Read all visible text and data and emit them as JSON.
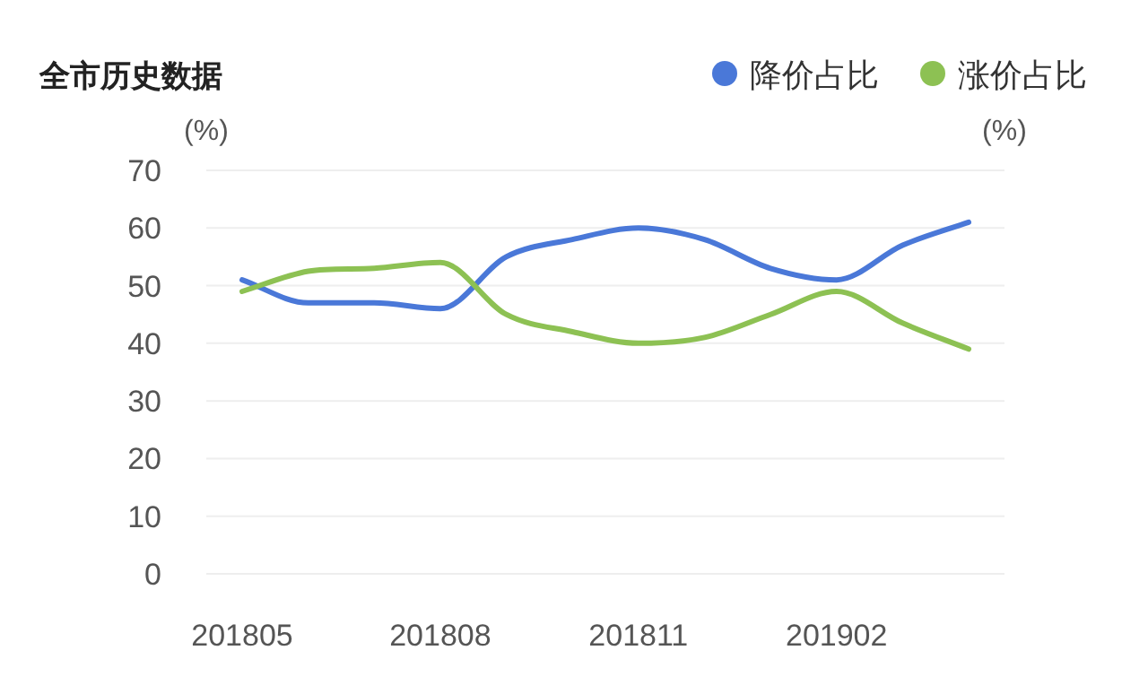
{
  "chart_data": {
    "type": "line",
    "title": "全市历史数据",
    "ylabel": "(%)",
    "annotations": [
      "(%)"
    ],
    "categories": [
      "201805",
      null,
      null,
      "201808",
      null,
      null,
      "201811",
      null,
      null,
      "201902",
      null,
      null
    ],
    "series": [
      {
        "name": "降价占比",
        "color": "#4a78d8",
        "values": [
          51,
          47,
          47,
          46,
          55,
          58,
          60,
          58,
          53,
          51,
          57,
          61
        ]
      },
      {
        "name": "涨价占比",
        "color": "#8dc153",
        "values": [
          49,
          52.5,
          53,
          54,
          45,
          42,
          40,
          41,
          45,
          49,
          43.5,
          39
        ]
      }
    ],
    "ylim": [
      0,
      70
    ],
    "yticks": [
      0,
      10,
      20,
      30,
      40,
      50,
      60,
      70
    ],
    "grid": "y",
    "legend": "top right",
    "marker": "none",
    "line_style": "solid"
  }
}
